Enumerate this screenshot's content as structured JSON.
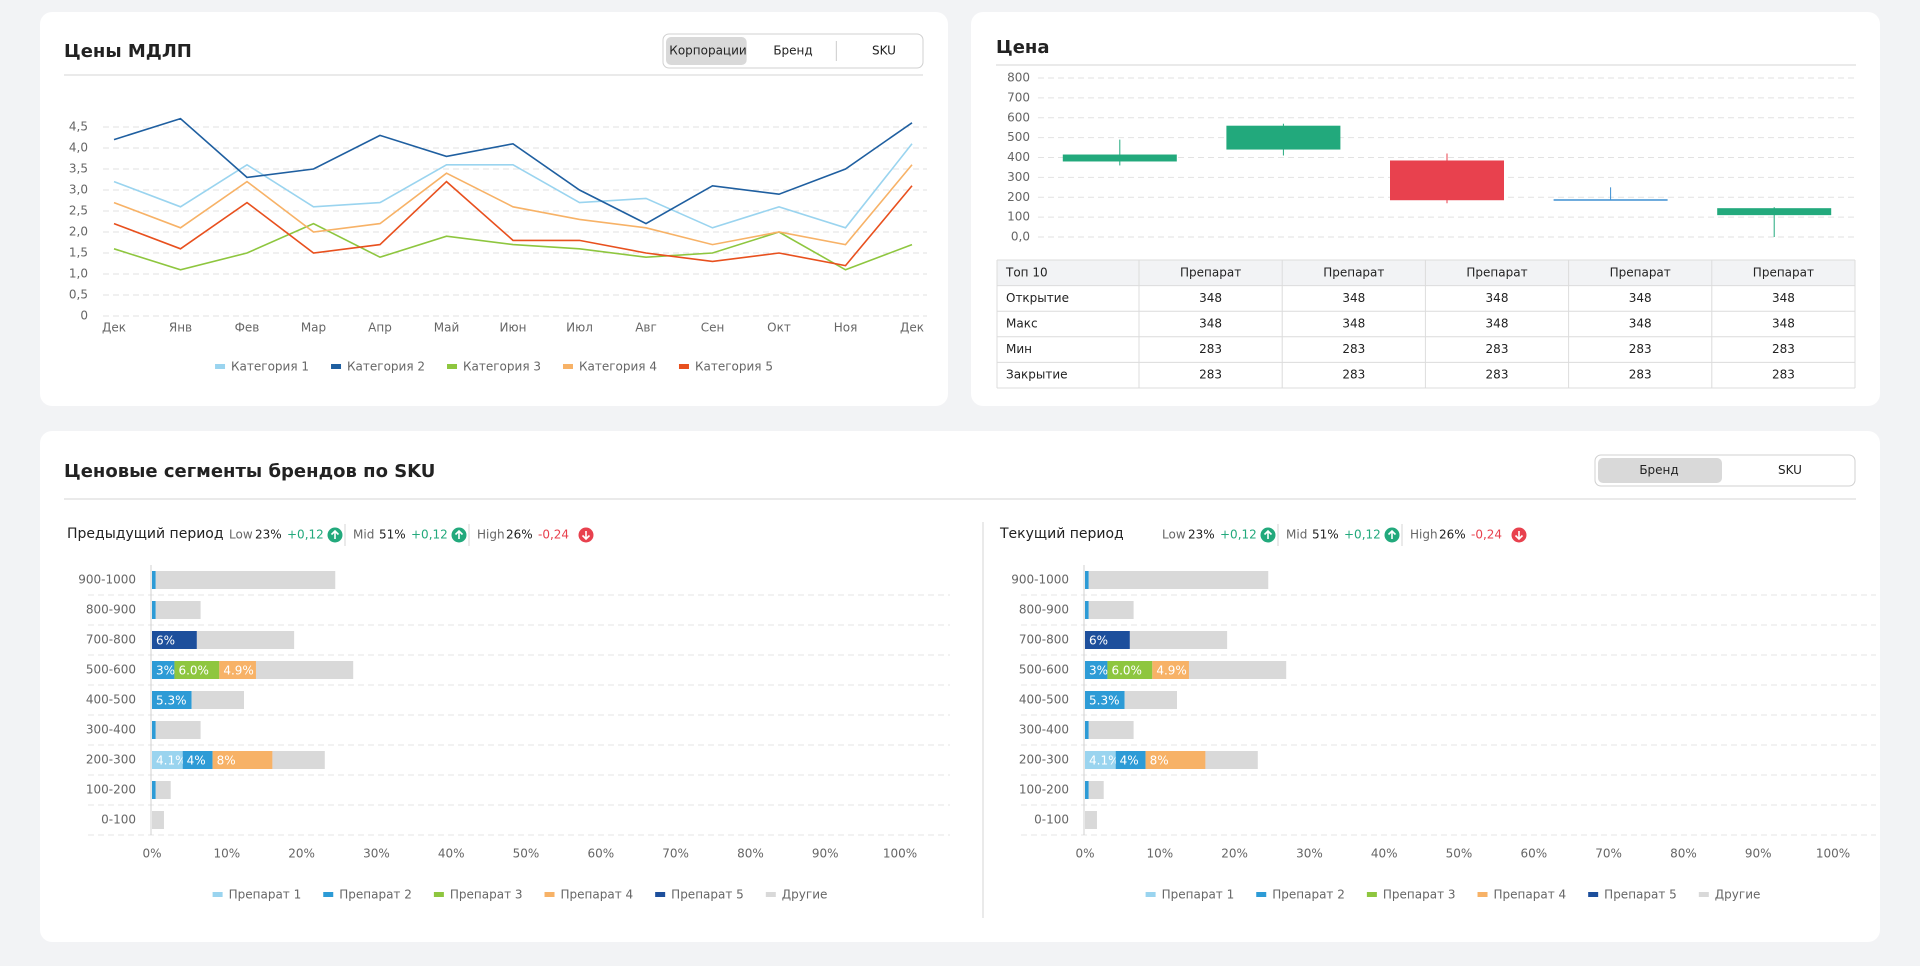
{
  "ui": {
    "toggle_top": {
      "options": [
        "Корпорации",
        "Бренд",
        "SKU"
      ],
      "active": 0
    },
    "table": {
      "header": [
        "Топ 10",
        "Препарат",
        "Препарат",
        "Препарат",
        "Препарат",
        "Препарат"
      ],
      "rows": [
        [
          "Открытие",
          348,
          348,
          348,
          348,
          348
        ],
        [
          "Макс",
          348,
          348,
          348,
          348,
          348
        ],
        [
          "Мин",
          283,
          283,
          283,
          283,
          283
        ],
        [
          "Закрытие",
          283,
          283,
          283,
          283,
          283
        ]
      ]
    },
    "segments_title": "Ценовые сегменты брендов по SKU",
    "toggle_segments": {
      "options": [
        "Бренд",
        "SKU"
      ],
      "active": 0
    }
  },
  "chart_data": [
    {
      "type": "line",
      "title": "Цены МДЛП",
      "categories": [
        "Дек",
        "Янв",
        "Фев",
        "Мар",
        "Апр",
        "Май",
        "Июн",
        "Июл",
        "Авг",
        "Сен",
        "Окт",
        "Ноя",
        "Дек"
      ],
      "series": [
        {
          "name": "Категория 1",
          "color": "#9ad4ef",
          "values": [
            3.2,
            2.6,
            3.6,
            2.6,
            2.7,
            3.6,
            3.6,
            2.7,
            2.8,
            2.1,
            2.6,
            2.1,
            4.1
          ]
        },
        {
          "name": "Категория 2",
          "color": "#1f5fa0",
          "values": [
            4.2,
            4.7,
            3.3,
            3.5,
            4.3,
            3.8,
            4.1,
            3.0,
            2.2,
            3.1,
            2.9,
            3.5,
            4.6
          ]
        },
        {
          "name": "Категория 3",
          "color": "#8ec63f",
          "values": [
            1.6,
            1.1,
            1.5,
            2.2,
            1.4,
            1.9,
            1.7,
            1.6,
            1.4,
            1.5,
            2.0,
            1.1,
            1.7
          ]
        },
        {
          "name": "Категория 4",
          "color": "#f7b267",
          "values": [
            2.7,
            2.1,
            3.2,
            2.0,
            2.2,
            3.4,
            2.6,
            2.3,
            2.1,
            1.7,
            2.0,
            1.7,
            3.6
          ]
        },
        {
          "name": "Категория 5",
          "color": "#e8501e",
          "values": [
            2.2,
            1.6,
            2.7,
            1.5,
            1.7,
            3.2,
            1.8,
            1.8,
            1.5,
            1.3,
            1.5,
            1.2,
            3.1
          ]
        }
      ],
      "ylim": [
        0,
        5
      ],
      "yticks": [
        0,
        {
          "value": 0.5,
          "label": "0,5"
        },
        {
          "value": 1,
          "label": "1,0"
        },
        {
          "value": 1.5,
          "label": "1,5"
        },
        {
          "value": 2,
          "label": "2,0"
        },
        {
          "value": 2.5,
          "label": "2,5"
        },
        {
          "value": 3,
          "label": "3,0"
        },
        {
          "value": 3.5,
          "label": "3,5"
        },
        {
          "value": 4,
          "label": "4,0"
        },
        {
          "value": 4.5,
          "label": "4,5"
        }
      ],
      "grid": true
    },
    {
      "type": "candlestick",
      "title": "Цена",
      "categories": [
        null,
        null,
        null,
        null,
        null
      ],
      "open": [
        380,
        440,
        385,
        185,
        110
      ],
      "high": [
        490,
        570,
        420,
        250,
        150
      ],
      "low": [
        360,
        410,
        170,
        185,
        0
      ],
      "close": [
        415,
        560,
        185,
        190,
        145
      ],
      "colors": [
        "#22a97c",
        "#22a97c",
        "#e8414e",
        "#3d8fd1",
        "#22a97c"
      ],
      "ylim": [
        0,
        800
      ],
      "yticks": [
        {
          "value": 0,
          "label": "0,0"
        },
        100,
        200,
        300,
        400,
        500,
        600,
        700,
        800
      ],
      "grid": true
    },
    {
      "type": "barh_stacked",
      "title": "Предыдущий период",
      "stats": [
        {
          "label": "Low",
          "value": "23%",
          "change": "+0,12"
        },
        {
          "label": "Mid",
          "value": "51%",
          "change": "+0,12"
        },
        {
          "label": "High",
          "value": "26%",
          "change": "-0,24"
        }
      ],
      "categories": [
        "900-1000",
        "800-900",
        "700-800",
        "500-600",
        "400-500",
        "300-400",
        "200-300",
        "100-200",
        "0-100"
      ],
      "series": [
        {
          "name": "Препарат 1",
          "color": "#9ad4ef",
          "values": [
            null,
            null,
            null,
            null,
            null,
            null,
            4.1,
            null,
            null
          ],
          "value_labels": [
            null,
            null,
            null,
            null,
            null,
            null,
            "4.1%",
            null,
            null
          ]
        },
        {
          "name": "Препарат 2",
          "color": "#2d9bd6",
          "values": [
            0.5,
            0.5,
            null,
            3,
            5.3,
            0.5,
            4,
            0.5,
            null
          ],
          "value_labels": [
            null,
            null,
            null,
            "3%",
            "5.3%",
            null,
            "4%",
            null,
            null
          ]
        },
        {
          "name": "Препарат 3",
          "color": "#8ec63f",
          "values": [
            null,
            null,
            null,
            6.0,
            null,
            null,
            null,
            null,
            null
          ],
          "value_labels": [
            null,
            null,
            null,
            "6.0%",
            null,
            null,
            null,
            null,
            null
          ]
        },
        {
          "name": "Препарат 4",
          "color": "#f7b267",
          "values": [
            null,
            null,
            null,
            4.9,
            null,
            null,
            8,
            null,
            null
          ],
          "value_labels": [
            null,
            null,
            null,
            "4.9%",
            null,
            null,
            "8%",
            null,
            null
          ]
        },
        {
          "name": "Препарат 5",
          "color": "#1d4f9c",
          "values": [
            null,
            null,
            6,
            null,
            null,
            null,
            null,
            null,
            null
          ],
          "value_labels": [
            null,
            null,
            "6%",
            null,
            null,
            null,
            null,
            null,
            null
          ]
        },
        {
          "name": "Другие",
          "color": "#d9d9d9",
          "values": [
            24,
            6,
            13,
            13,
            7,
            6,
            7,
            2,
            1.6
          ]
        }
      ],
      "xlim": [
        0,
        100
      ],
      "xticks": [
        {
          "value": 0,
          "label": "0%"
        },
        {
          "value": 10,
          "label": "10%"
        },
        {
          "value": 20,
          "label": "20%"
        },
        {
          "value": 30,
          "label": "30%"
        },
        {
          "value": 40,
          "label": "40%"
        },
        {
          "value": 50,
          "label": "50%"
        },
        {
          "value": 60,
          "label": "60%"
        },
        {
          "value": 70,
          "label": "70%"
        },
        {
          "value": 80,
          "label": "80%"
        },
        {
          "value": 90,
          "label": "90%"
        },
        {
          "value": 100,
          "label": "100%"
        }
      ],
      "grid": true
    },
    {
      "type": "barh_stacked",
      "title": "Текущий период",
      "stats": [
        {
          "label": "Low",
          "value": "23%",
          "change": "+0,12"
        },
        {
          "label": "Mid",
          "value": "51%",
          "change": "+0,12"
        },
        {
          "label": "High",
          "value": "26%",
          "change": "-0,24"
        }
      ],
      "categories": [
        "900-1000",
        "800-900",
        "700-800",
        "500-600",
        "400-500",
        "300-400",
        "200-300",
        "100-200",
        "0-100"
      ],
      "series": [
        {
          "name": "Препарат 1",
          "color": "#9ad4ef",
          "values": [
            null,
            null,
            null,
            null,
            null,
            null,
            4.1,
            null,
            null
          ],
          "value_labels": [
            null,
            null,
            null,
            null,
            null,
            null,
            "4.1%",
            null,
            null
          ]
        },
        {
          "name": "Препарат 2",
          "color": "#2d9bd6",
          "values": [
            0.5,
            0.5,
            null,
            3,
            5.3,
            0.5,
            4,
            0.5,
            null
          ],
          "value_labels": [
            null,
            null,
            null,
            "3%",
            "5.3%",
            null,
            "4%",
            null,
            null
          ]
        },
        {
          "name": "Препарат 3",
          "color": "#8ec63f",
          "values": [
            null,
            null,
            null,
            6.0,
            null,
            null,
            null,
            null,
            null
          ],
          "value_labels": [
            null,
            null,
            null,
            "6.0%",
            null,
            null,
            null,
            null,
            null
          ]
        },
        {
          "name": "Препарат 4",
          "color": "#f7b267",
          "values": [
            null,
            null,
            null,
            4.9,
            null,
            null,
            8,
            null,
            null
          ],
          "value_labels": [
            null,
            null,
            null,
            "4.9%",
            null,
            null,
            "8%",
            null,
            null
          ]
        },
        {
          "name": "Препарат 5",
          "color": "#1d4f9c",
          "values": [
            null,
            null,
            6,
            null,
            null,
            null,
            null,
            null,
            null
          ],
          "value_labels": [
            null,
            null,
            "6%",
            null,
            null,
            null,
            null,
            null,
            null
          ]
        },
        {
          "name": "Другие",
          "color": "#d9d9d9",
          "values": [
            24,
            6,
            13,
            13,
            7,
            6,
            7,
            2,
            1.6
          ]
        }
      ],
      "xlim": [
        0,
        100
      ],
      "xticks": [
        {
          "value": 0,
          "label": "0%"
        },
        {
          "value": 10,
          "label": "10%"
        },
        {
          "value": 20,
          "label": "20%"
        },
        {
          "value": 30,
          "label": "30%"
        },
        {
          "value": 40,
          "label": "40%"
        },
        {
          "value": 50,
          "label": "50%"
        },
        {
          "value": 60,
          "label": "60%"
        },
        {
          "value": 70,
          "label": "70%"
        },
        {
          "value": 80,
          "label": "80%"
        },
        {
          "value": 90,
          "label": "90%"
        },
        {
          "value": 100,
          "label": "100%"
        }
      ],
      "grid": true
    }
  ]
}
